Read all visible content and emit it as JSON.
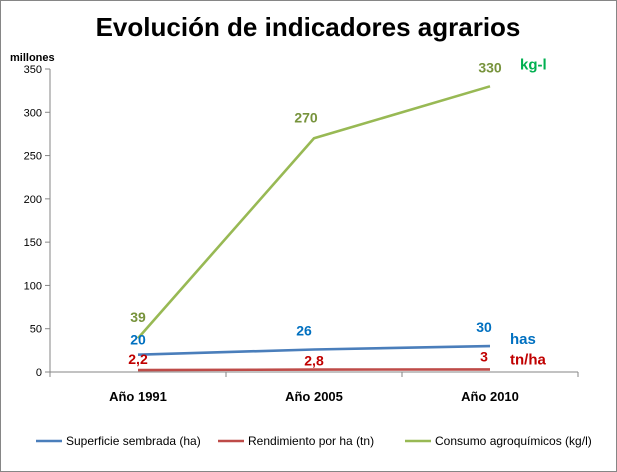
{
  "chart_data": {
    "type": "line",
    "title": "Evolución de indicadores agrarios",
    "unit_label": "millones",
    "categories": [
      "Año 1991",
      "Año 2005",
      "Año 2010"
    ],
    "ylim": [
      0,
      350
    ],
    "yticks": [
      0,
      50,
      100,
      150,
      200,
      250,
      300,
      350
    ],
    "grid": false,
    "legend_position": "bottom",
    "series": [
      {
        "name": "Superficie sembrada (ha)",
        "values": [
          20,
          26,
          30
        ],
        "data_labels": [
          "20",
          "26",
          "30"
        ],
        "end_tag": "has",
        "color": "#4a7ebb",
        "label_color": "#0070c0"
      },
      {
        "name": "Rendimiento por ha (tn)",
        "values": [
          2.2,
          2.8,
          3
        ],
        "data_labels": [
          "2,2",
          "2,8",
          "3"
        ],
        "end_tag": "tn/ha",
        "color": "#be4b48",
        "label_color": "#c00000"
      },
      {
        "name": "Consumo agroquímicos (kg/l)",
        "values": [
          39,
          270,
          330
        ],
        "data_labels": [
          "39",
          "270",
          "330"
        ],
        "end_tag": "kg-l",
        "color": "#98b954",
        "label_color": "#77933c",
        "tag_color": "#00b050"
      }
    ]
  }
}
